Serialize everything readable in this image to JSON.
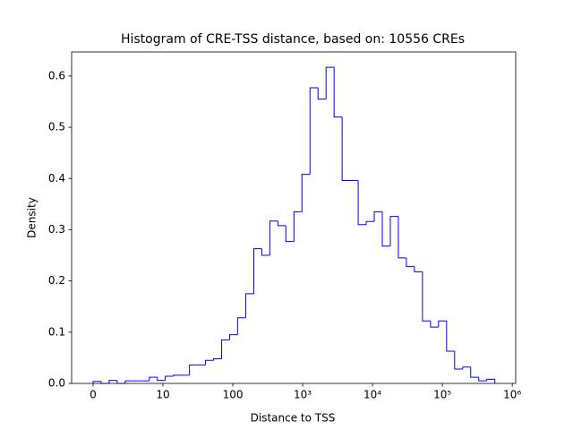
{
  "chart_data": {
    "type": "histogram",
    "title": "Histogram of CRE-TSS distance, based on: 10556 CREs",
    "xlabel": "Distance to TSS",
    "ylabel": "Density",
    "color": "#0000ff",
    "xscale": "symlog",
    "linthresh": 10,
    "bins": [
      0,
      1.15,
      2.3,
      3.45,
      4.6,
      5.75,
      6.9,
      8.05,
      9.2,
      10.8,
      14.1,
      18.4,
      24.0,
      31.3,
      40.7,
      53.1,
      69.2,
      90.2,
      117,
      153,
      200,
      260,
      339,
      442,
      575,
      750,
      977,
      1274,
      1660,
      2163,
      2818,
      3673,
      4786,
      6237,
      8128,
      10593,
      13804,
      17989,
      23442,
      30549,
      39811,
      51880,
      67608,
      88105,
      114815,
      149624,
      194984,
      254097,
      331131,
      431519,
      562341
    ],
    "values": [
      0.004,
      0,
      0.006,
      0,
      0.005,
      0.005,
      0.005,
      0.012,
      0.006,
      0.014,
      0.016,
      0.016,
      0.036,
      0.036,
      0.045,
      0.048,
      0.085,
      0.095,
      0.128,
      0.175,
      0.263,
      0.25,
      0.317,
      0.308,
      0.277,
      0.335,
      0.408,
      0.577,
      0.555,
      0.617,
      0.52,
      0.396,
      0.396,
      0.31,
      0.316,
      0.335,
      0.268,
      0.326,
      0.245,
      0.228,
      0.218,
      0.122,
      0.11,
      0.122,
      0.063,
      0.028,
      0.032,
      0.012,
      0.005,
      0.008
    ],
    "xlim": [
      -3.07,
      1120000
    ],
    "xticks": [
      0,
      10,
      100,
      {
        "value": 1000,
        "label": "10³"
      },
      {
        "value": 10000,
        "label": "10⁴"
      },
      {
        "value": 100000,
        "label": "10⁵"
      },
      {
        "value": 1000000,
        "label": "10⁶"
      }
    ],
    "ylim": [
      0,
      0.647
    ],
    "yticks": [
      {
        "value": 0,
        "label": "0.0"
      },
      0.1,
      0.2,
      0.3,
      0.4,
      0.5,
      0.6
    ]
  }
}
